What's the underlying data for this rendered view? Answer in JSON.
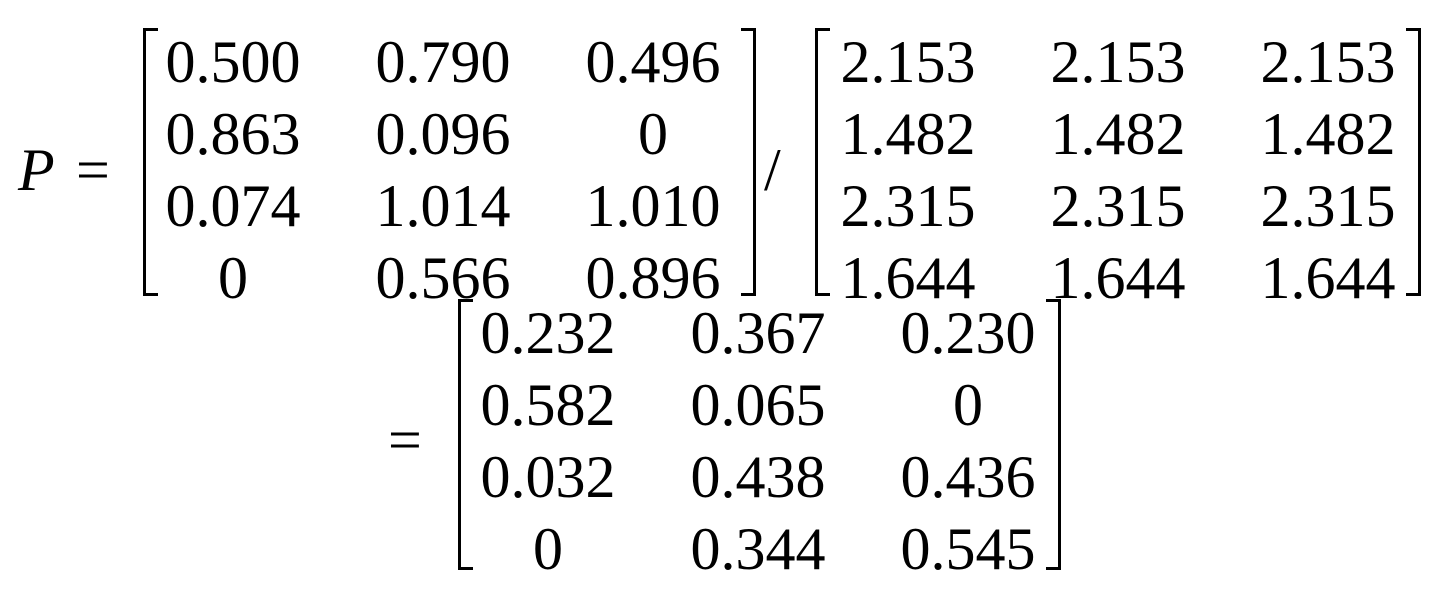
{
  "equation": {
    "lhs": "P",
    "equals": "=",
    "divide": "/",
    "matrix_a": [
      [
        "0.500",
        "0.790",
        "0.496"
      ],
      [
        "0.863",
        "0.096",
        "0"
      ],
      [
        "0.074",
        "1.014",
        "1.010"
      ],
      [
        "0",
        "0.566",
        "0.896"
      ]
    ],
    "matrix_b": [
      [
        "2.153",
        "2.153",
        "2.153"
      ],
      [
        "1.482",
        "1.482",
        "1.482"
      ],
      [
        "2.315",
        "2.315",
        "2.315"
      ],
      [
        "1.644",
        "1.644",
        "1.644"
      ]
    ],
    "result": [
      [
        "0.232",
        "0.367",
        "0.230"
      ],
      [
        "0.582",
        "0.065",
        "0"
      ],
      [
        "0.032",
        "0.438",
        "0.436"
      ],
      [
        "0",
        "0.344",
        "0.545"
      ]
    ]
  }
}
